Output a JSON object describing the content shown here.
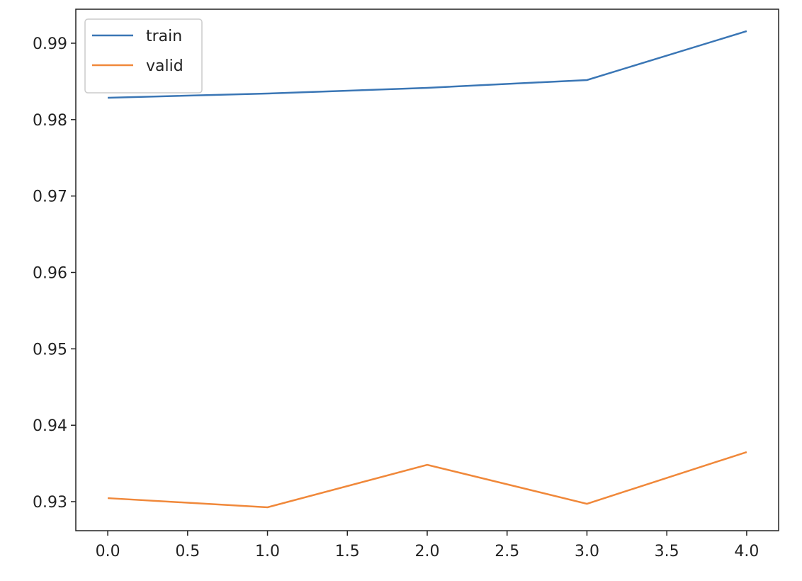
{
  "chart_data": {
    "type": "line",
    "x": [
      0,
      1,
      2,
      3,
      4
    ],
    "series": [
      {
        "name": "train",
        "color": "#3a76b5",
        "values": [
          0.98286,
          0.98341,
          0.98416,
          0.98518,
          0.99158
        ]
      },
      {
        "name": "valid",
        "color": "#f0883a",
        "values": [
          0.93046,
          0.92926,
          0.93482,
          0.92972,
          0.93649
        ]
      }
    ],
    "xlim": [
      -0.2,
      4.2
    ],
    "xticks": [
      {
        "value": 0,
        "label": "0.0"
      },
      {
        "value": 0.5,
        "label": "0.5"
      },
      {
        "value": 1,
        "label": "1.0"
      },
      {
        "value": 1.5,
        "label": "1.5"
      },
      {
        "value": 2,
        "label": "2.0"
      },
      {
        "value": 2.5,
        "label": "2.5"
      },
      {
        "value": 3,
        "label": "3.0"
      },
      {
        "value": 3.5,
        "label": "3.5"
      },
      {
        "value": 4,
        "label": "4.0"
      }
    ],
    "ylim": [
      0.9262,
      0.99445
    ],
    "yticks": [
      0.93,
      0.94,
      0.95,
      0.96,
      0.97,
      0.98,
      0.99
    ],
    "grid": false,
    "legend": "upper left"
  }
}
